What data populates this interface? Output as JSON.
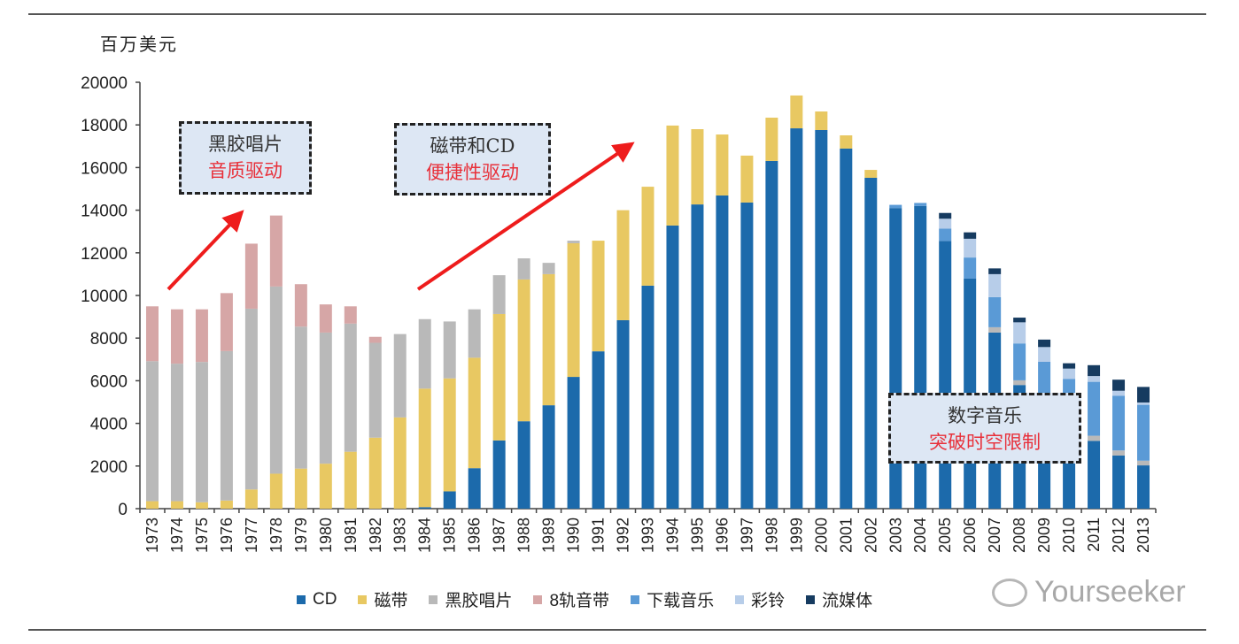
{
  "chart_data": {
    "type": "bar",
    "stacked": true,
    "ylabel": "百万美元",
    "ylim": [
      0,
      20000
    ],
    "yticks": [
      0,
      2000,
      4000,
      6000,
      8000,
      10000,
      12000,
      14000,
      16000,
      18000,
      20000
    ],
    "grid": false,
    "legend_position": "bottom",
    "categories": [
      "1973",
      "1974",
      "1975",
      "1976",
      "1977",
      "1978",
      "1979",
      "1980",
      "1981",
      "1982",
      "1983",
      "1984",
      "1985",
      "1986",
      "1987",
      "1988",
      "1989",
      "1990",
      "1991",
      "1992",
      "1993",
      "1994",
      "1995",
      "1996",
      "1997",
      "1998",
      "1999",
      "2000",
      "2001",
      "2002",
      "2003",
      "2004",
      "2005",
      "2006",
      "2007",
      "2008",
      "2009",
      "2010",
      "2011",
      "2012",
      "2013"
    ],
    "series": [
      {
        "name": "CD",
        "color": "#1c6aab",
        "values": [
          0,
          0,
          0,
          0,
          0,
          0,
          0,
          0,
          0,
          0,
          0,
          70,
          810,
          1900,
          3200,
          4100,
          4850,
          6180,
          7380,
          8840,
          10460,
          13280,
          14270,
          14690,
          14360,
          16310,
          17840,
          17760,
          16890,
          15520,
          14100,
          14200,
          12560,
          10790,
          8260,
          5800,
          4300,
          3400,
          3180,
          2490,
          2030
        ]
      },
      {
        "name": "磁带",
        "color": "#e8c862",
        "values": [
          350,
          350,
          300,
          380,
          900,
          1640,
          1880,
          2110,
          2670,
          3330,
          4280,
          5560,
          5300,
          5180,
          5930,
          6650,
          6150,
          6270,
          5190,
          5160,
          4640,
          4690,
          3530,
          2860,
          2200,
          2030,
          1540,
          870,
          620,
          370,
          0,
          0,
          0,
          0,
          0,
          0,
          0,
          0,
          0,
          0,
          0
        ]
      },
      {
        "name": "黑胶唱片",
        "color": "#b9b9b9",
        "values": [
          6570,
          6450,
          6580,
          7010,
          8480,
          8780,
          6660,
          6150,
          6010,
          4450,
          3910,
          3260,
          2670,
          2270,
          1820,
          990,
          530,
          120,
          0,
          0,
          0,
          0,
          0,
          0,
          0,
          0,
          0,
          0,
          0,
          0,
          0,
          0,
          0,
          0,
          250,
          220,
          100,
          100,
          240,
          240,
          220
        ]
      },
      {
        "name": "8轨音带",
        "color": "#d6a6a6",
        "values": [
          2570,
          2550,
          2470,
          2720,
          3050,
          3330,
          1990,
          1320,
          810,
          280,
          0,
          0,
          0,
          0,
          0,
          0,
          0,
          0,
          0,
          0,
          0,
          0,
          0,
          0,
          0,
          0,
          0,
          0,
          0,
          0,
          0,
          0,
          0,
          0,
          0,
          0,
          0,
          0,
          0,
          0,
          0
        ]
      },
      {
        "name": "下载音乐",
        "color": "#5a9ad6",
        "values": [
          0,
          0,
          0,
          0,
          0,
          0,
          0,
          0,
          0,
          0,
          0,
          0,
          0,
          0,
          0,
          0,
          0,
          0,
          0,
          0,
          0,
          0,
          0,
          0,
          0,
          0,
          0,
          0,
          0,
          0,
          150,
          140,
          580,
          990,
          1410,
          1730,
          2490,
          2590,
          2530,
          2570,
          2620
        ]
      },
      {
        "name": "彩铃",
        "color": "#b7cde9",
        "values": [
          0,
          0,
          0,
          0,
          0,
          0,
          0,
          0,
          0,
          0,
          0,
          0,
          0,
          0,
          0,
          0,
          0,
          0,
          0,
          0,
          0,
          0,
          0,
          0,
          0,
          0,
          0,
          0,
          0,
          0,
          0,
          0,
          460,
          880,
          1080,
          990,
          690,
          480,
          270,
          230,
          110
        ]
      },
      {
        "name": "流媒体",
        "color": "#163b60",
        "values": [
          0,
          0,
          0,
          0,
          0,
          0,
          0,
          0,
          0,
          0,
          0,
          0,
          0,
          0,
          0,
          0,
          0,
          0,
          0,
          0,
          0,
          0,
          0,
          0,
          0,
          0,
          0,
          0,
          0,
          0,
          0,
          0,
          270,
          300,
          270,
          220,
          350,
          250,
          510,
          520,
          730
        ]
      }
    ],
    "annotations": [
      {
        "line1": "黑胶唱片",
        "line2": "音质驱动"
      },
      {
        "line1": "磁带和CD",
        "line2": "便捷性驱动"
      },
      {
        "line1": "数字音乐",
        "line2": "突破时空限制"
      }
    ]
  },
  "watermark": "Yourseeker",
  "colors": {
    "accent_red": "#e8303a",
    "annotation_fill": "#dde7f4"
  }
}
